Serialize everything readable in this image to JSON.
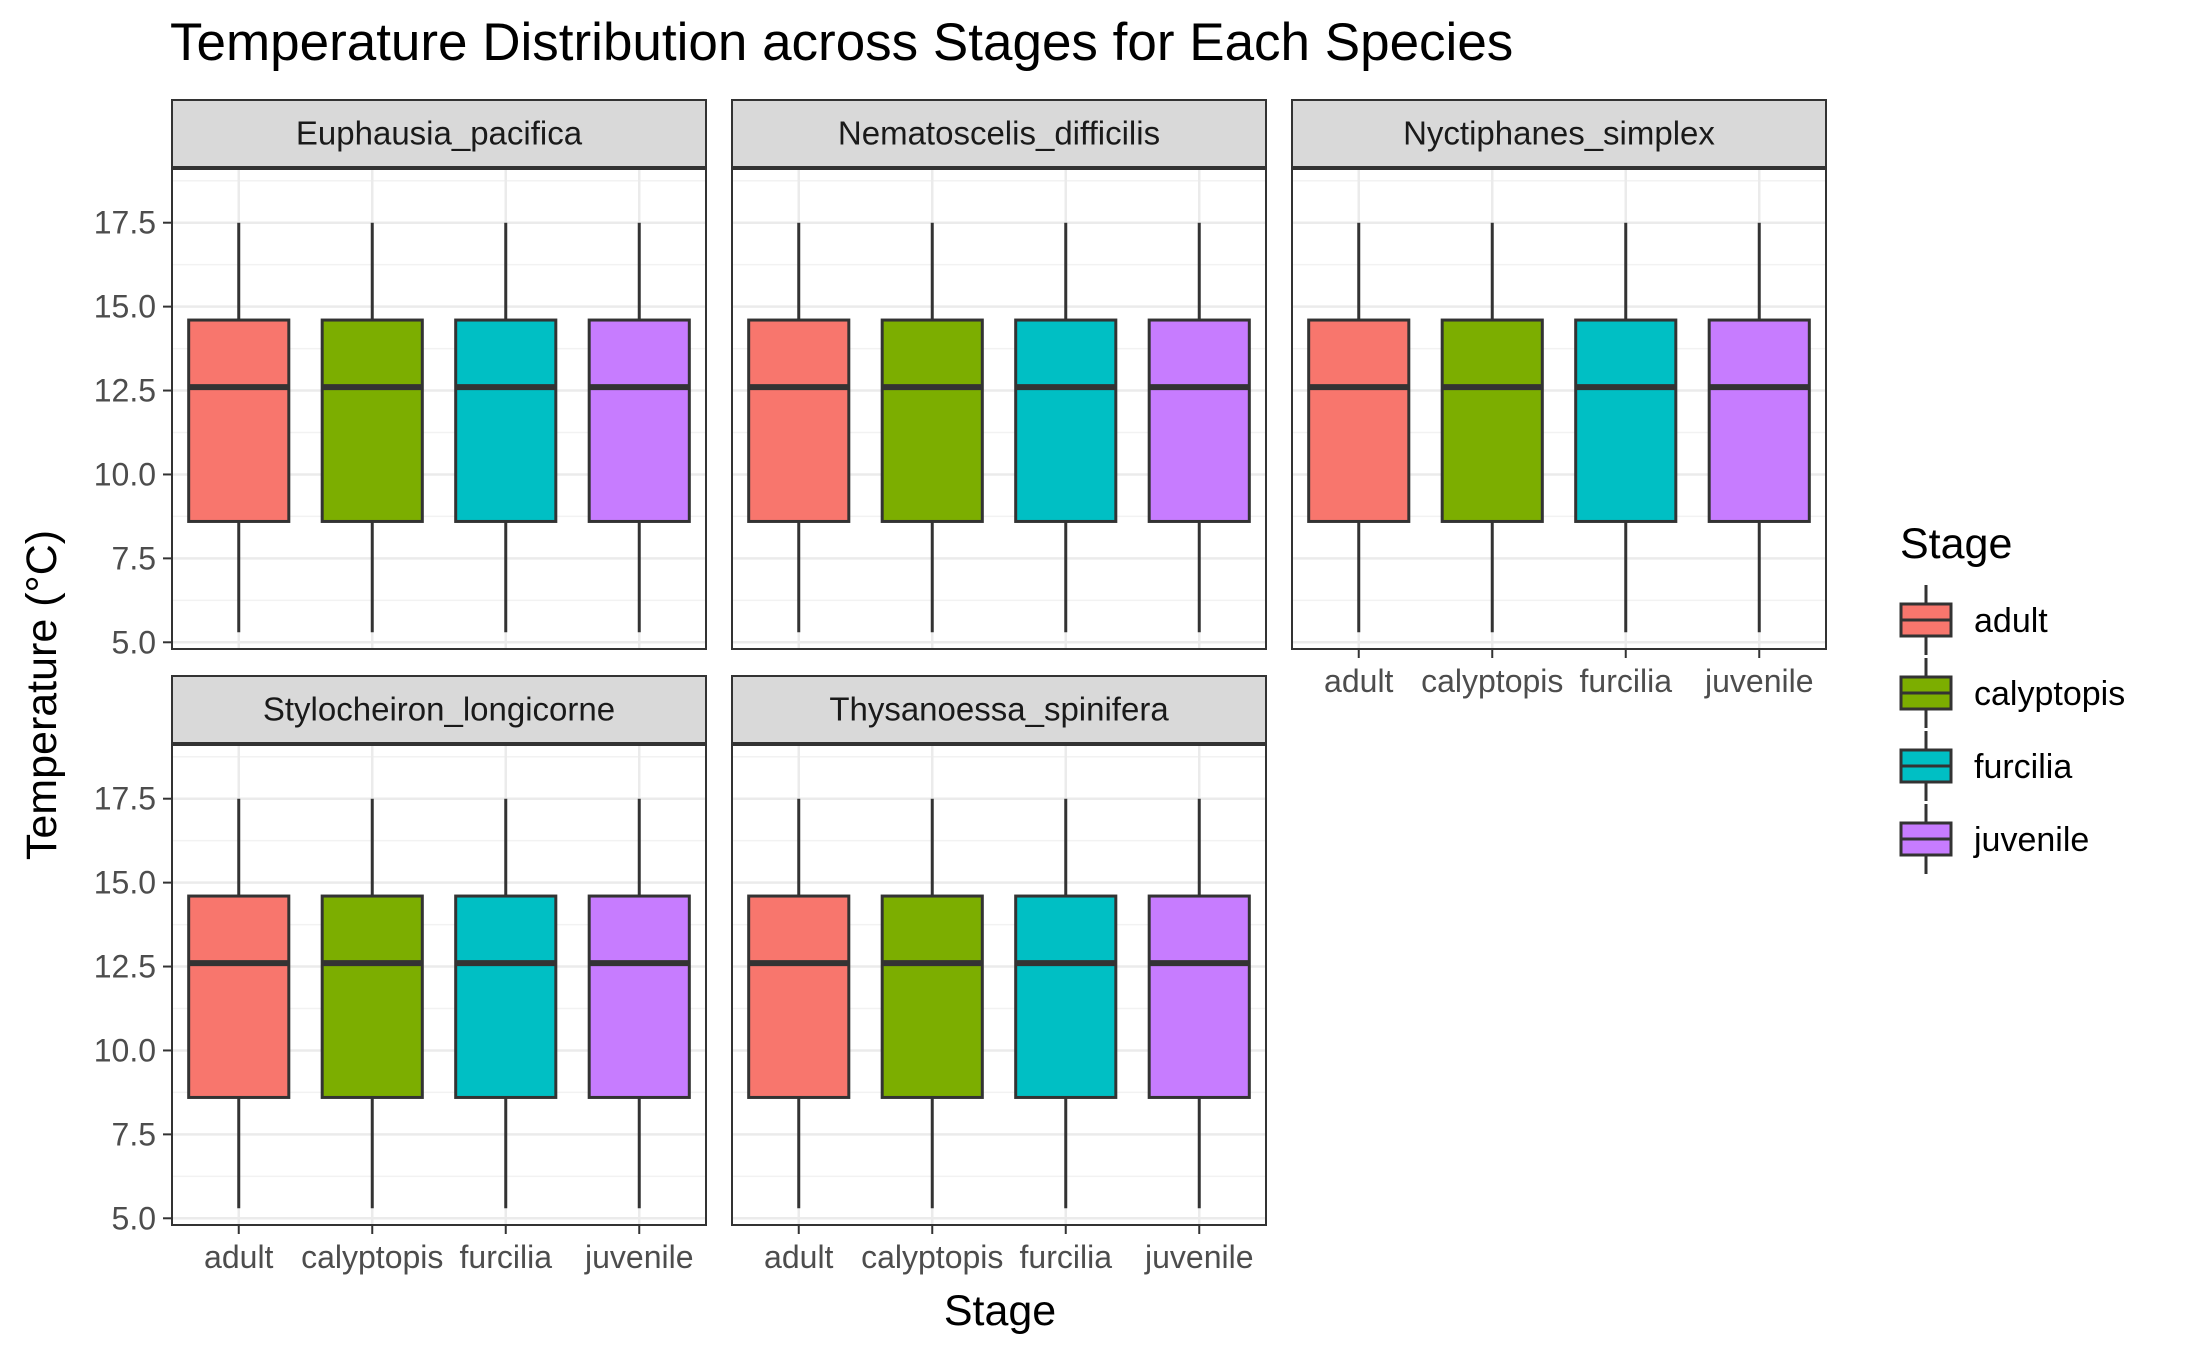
{
  "chart_data": {
    "type": "boxplot",
    "title": "Temperature Distribution across Stages for Each Species",
    "xlabel": "Stage",
    "ylabel": "Temperature (°C)",
    "ylim": [
      4.8,
      19.1
    ],
    "yticks": [
      "5.0",
      "7.5",
      "10.0",
      "12.5",
      "15.0",
      "17.5"
    ],
    "categories": [
      "adult",
      "calyptopis",
      "furcilia",
      "juvenile"
    ],
    "colors": {
      "adult": "#F8766D",
      "calyptopis": "#7CAE00",
      "furcilia": "#00BFC4",
      "juvenile": "#C77CFF"
    },
    "legend": {
      "title": "Stage",
      "position": "right",
      "items": [
        "adult",
        "calyptopis",
        "furcilia",
        "juvenile"
      ]
    },
    "facets": [
      {
        "name": "Euphausia_pacifica",
        "boxes": [
          {
            "stage": "adult",
            "min": 5.3,
            "q1": 8.6,
            "median": 12.6,
            "q3": 14.6,
            "max": 17.5
          },
          {
            "stage": "calyptopis",
            "min": 5.3,
            "q1": 8.6,
            "median": 12.6,
            "q3": 14.6,
            "max": 17.5
          },
          {
            "stage": "furcilia",
            "min": 5.3,
            "q1": 8.6,
            "median": 12.6,
            "q3": 14.6,
            "max": 17.5
          },
          {
            "stage": "juvenile",
            "min": 5.3,
            "q1": 8.6,
            "median": 12.6,
            "q3": 14.6,
            "max": 17.5
          }
        ]
      },
      {
        "name": "Nematoscelis_difficilis",
        "boxes": [
          {
            "stage": "adult",
            "min": 5.3,
            "q1": 8.6,
            "median": 12.6,
            "q3": 14.6,
            "max": 17.5
          },
          {
            "stage": "calyptopis",
            "min": 5.3,
            "q1": 8.6,
            "median": 12.6,
            "q3": 14.6,
            "max": 17.5
          },
          {
            "stage": "furcilia",
            "min": 5.3,
            "q1": 8.6,
            "median": 12.6,
            "q3": 14.6,
            "max": 17.5
          },
          {
            "stage": "juvenile",
            "min": 5.3,
            "q1": 8.6,
            "median": 12.6,
            "q3": 14.6,
            "max": 17.5
          }
        ]
      },
      {
        "name": "Nyctiphanes_simplex",
        "boxes": [
          {
            "stage": "adult",
            "min": 5.3,
            "q1": 8.6,
            "median": 12.6,
            "q3": 14.6,
            "max": 17.5
          },
          {
            "stage": "calyptopis",
            "min": 5.3,
            "q1": 8.6,
            "median": 12.6,
            "q3": 14.6,
            "max": 17.5
          },
          {
            "stage": "furcilia",
            "min": 5.3,
            "q1": 8.6,
            "median": 12.6,
            "q3": 14.6,
            "max": 17.5
          },
          {
            "stage": "juvenile",
            "min": 5.3,
            "q1": 8.6,
            "median": 12.6,
            "q3": 14.6,
            "max": 17.5
          }
        ]
      },
      {
        "name": "Stylocheiron_longicorne",
        "boxes": [
          {
            "stage": "adult",
            "min": 5.3,
            "q1": 8.6,
            "median": 12.6,
            "q3": 14.6,
            "max": 17.5
          },
          {
            "stage": "calyptopis",
            "min": 5.3,
            "q1": 8.6,
            "median": 12.6,
            "q3": 14.6,
            "max": 17.5
          },
          {
            "stage": "furcilia",
            "min": 5.3,
            "q1": 8.6,
            "median": 12.6,
            "q3": 14.6,
            "max": 17.5
          },
          {
            "stage": "juvenile",
            "min": 5.3,
            "q1": 8.6,
            "median": 12.6,
            "q3": 14.6,
            "max": 17.5
          }
        ]
      },
      {
        "name": "Thysanoessa_spinifera",
        "boxes": [
          {
            "stage": "adult",
            "min": 5.3,
            "q1": 8.6,
            "median": 12.6,
            "q3": 14.6,
            "max": 17.5
          },
          {
            "stage": "calyptopis",
            "min": 5.3,
            "q1": 8.6,
            "median": 12.6,
            "q3": 14.6,
            "max": 17.5
          },
          {
            "stage": "furcilia",
            "min": 5.3,
            "q1": 8.6,
            "median": 12.6,
            "q3": 14.6,
            "max": 17.5
          },
          {
            "stage": "juvenile",
            "min": 5.3,
            "q1": 8.6,
            "median": 12.6,
            "q3": 14.6,
            "max": 17.5
          }
        ]
      }
    ]
  }
}
